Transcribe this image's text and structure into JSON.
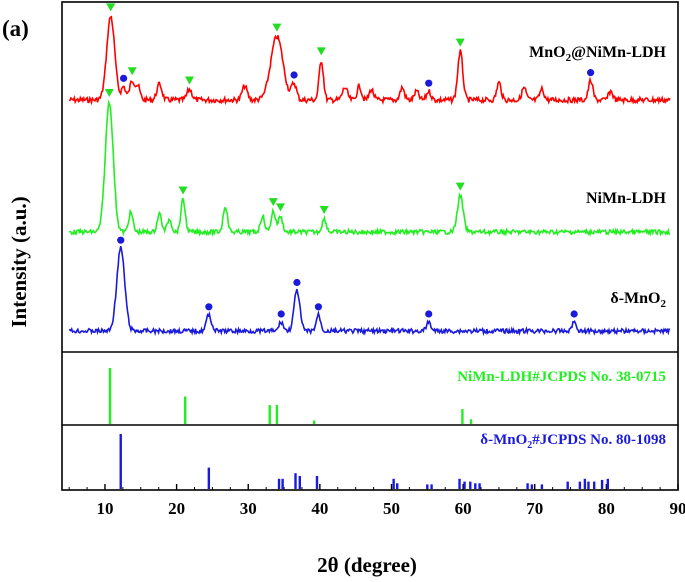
{
  "panel_label": "(a)",
  "chart_data": {
    "type": "line",
    "xlabel": "2θ (degree)",
    "ylabel": "Intensity (a.u.)",
    "xlim": [
      4,
      90
    ],
    "x_ticks": [
      10,
      20,
      30,
      40,
      50,
      60,
      70,
      80,
      90
    ],
    "y_ticks_shown": false,
    "series": [
      {
        "name": "MnO2@NiMn-LDH",
        "label_main": "MnO",
        "label_sub": "2",
        "label_rest": "@NiMn-LDH",
        "color": "#ff0000",
        "peaks": [
          {
            "x": 10.8,
            "h": 0.95,
            "w": 0.55
          },
          {
            "x": 12.6,
            "h": 0.15,
            "w": 0.3
          },
          {
            "x": 13.8,
            "h": 0.22,
            "w": 0.35
          },
          {
            "x": 14.6,
            "h": 0.15,
            "w": 0.3
          },
          {
            "x": 17.6,
            "h": 0.18,
            "w": 0.35
          },
          {
            "x": 21.8,
            "h": 0.12,
            "w": 0.35
          },
          {
            "x": 29.5,
            "h": 0.16,
            "w": 0.35
          },
          {
            "x": 34.0,
            "h": 0.72,
            "w": 0.85
          },
          {
            "x": 36.4,
            "h": 0.18,
            "w": 0.35
          },
          {
            "x": 40.2,
            "h": 0.45,
            "w": 0.3
          },
          {
            "x": 43.5,
            "h": 0.14,
            "w": 0.35
          },
          {
            "x": 45.5,
            "h": 0.16,
            "w": 0.3
          },
          {
            "x": 47.2,
            "h": 0.12,
            "w": 0.3
          },
          {
            "x": 51.5,
            "h": 0.14,
            "w": 0.3
          },
          {
            "x": 53.5,
            "h": 0.1,
            "w": 0.3
          },
          {
            "x": 55.2,
            "h": 0.1,
            "w": 0.3
          },
          {
            "x": 59.6,
            "h": 0.55,
            "w": 0.35
          },
          {
            "x": 65.0,
            "h": 0.2,
            "w": 0.3
          },
          {
            "x": 68.5,
            "h": 0.14,
            "w": 0.3
          },
          {
            "x": 71.0,
            "h": 0.12,
            "w": 0.3
          },
          {
            "x": 77.8,
            "h": 0.22,
            "w": 0.3
          },
          {
            "x": 80.6,
            "h": 0.1,
            "w": 0.3
          }
        ],
        "markers_ldh": [
          10.8,
          13.8,
          21.8,
          34.0,
          40.2,
          59.6
        ],
        "markers_mno2": [
          12.6,
          36.4,
          55.2,
          77.8
        ]
      },
      {
        "name": "NiMn-LDH",
        "label_main": "NiMn-LDH",
        "label_sub": "",
        "label_rest": "",
        "color": "#22ee22",
        "peaks": [
          {
            "x": 10.6,
            "h": 1.0,
            "w": 0.55
          },
          {
            "x": 13.6,
            "h": 0.15,
            "w": 0.3
          },
          {
            "x": 17.6,
            "h": 0.14,
            "w": 0.3
          },
          {
            "x": 19.0,
            "h": 0.1,
            "w": 0.3
          },
          {
            "x": 20.9,
            "h": 0.25,
            "w": 0.3
          },
          {
            "x": 26.8,
            "h": 0.2,
            "w": 0.3
          },
          {
            "x": 32.0,
            "h": 0.12,
            "w": 0.3
          },
          {
            "x": 33.5,
            "h": 0.16,
            "w": 0.3
          },
          {
            "x": 34.5,
            "h": 0.12,
            "w": 0.3
          },
          {
            "x": 40.6,
            "h": 0.1,
            "w": 0.3
          },
          {
            "x": 59.6,
            "h": 0.28,
            "w": 0.4
          }
        ],
        "markers_ldh": [
          10.6,
          20.9,
          33.5,
          34.5,
          40.6,
          59.6
        ],
        "markers_mno2": []
      },
      {
        "name": "δ-MnO2",
        "label_main": "δ-MnO",
        "label_sub": "2",
        "label_rest": "",
        "color": "#1a1adb",
        "peaks": [
          {
            "x": 12.2,
            "h": 0.92,
            "w": 0.55
          },
          {
            "x": 24.5,
            "h": 0.18,
            "w": 0.35
          },
          {
            "x": 34.6,
            "h": 0.1,
            "w": 0.3
          },
          {
            "x": 36.8,
            "h": 0.45,
            "w": 0.4
          },
          {
            "x": 39.8,
            "h": 0.18,
            "w": 0.3
          },
          {
            "x": 55.2,
            "h": 0.1,
            "w": 0.3
          },
          {
            "x": 75.5,
            "h": 0.1,
            "w": 0.3
          }
        ],
        "markers_ldh": [],
        "markers_mno2": [
          12.2,
          24.5,
          34.6,
          36.8,
          39.8,
          55.2,
          75.5
        ]
      }
    ],
    "references": [
      {
        "name": "NiMn-LDH#JCPDS No. 38-0715",
        "label_main": "NiMn-LDH#JCPDS No. 38-0715",
        "label_sub": "",
        "label_rest": "",
        "color": "#22ee22",
        "lines": [
          [
            10.7,
            1.0
          ],
          [
            21.2,
            0.5
          ],
          [
            33.0,
            0.35
          ],
          [
            34.0,
            0.35
          ],
          [
            39.2,
            0.08
          ],
          [
            59.9,
            0.28
          ],
          [
            61.1,
            0.1
          ]
        ]
      },
      {
        "name": "δ-MnO2#JCPDS No. 80-1098",
        "label_main": "δ-MnO",
        "label_sub": "2",
        "label_rest": "#JCPDS No. 80-1098",
        "color": "#1a1adb",
        "lines": [
          [
            12.2,
            1.0
          ],
          [
            24.5,
            0.4
          ],
          [
            34.3,
            0.2
          ],
          [
            34.8,
            0.2
          ],
          [
            36.6,
            0.3
          ],
          [
            37.2,
            0.25
          ],
          [
            39.6,
            0.25
          ],
          [
            50.3,
            0.2
          ],
          [
            50.8,
            0.12
          ],
          [
            55.0,
            0.1
          ],
          [
            55.6,
            0.1
          ],
          [
            59.5,
            0.2
          ],
          [
            60.2,
            0.15
          ],
          [
            61.0,
            0.15
          ],
          [
            61.7,
            0.12
          ],
          [
            62.3,
            0.12
          ],
          [
            69.0,
            0.12
          ],
          [
            69.6,
            0.1
          ],
          [
            71.0,
            0.1
          ],
          [
            74.6,
            0.15
          ],
          [
            76.3,
            0.15
          ],
          [
            77.0,
            0.2
          ],
          [
            77.5,
            0.15
          ],
          [
            78.3,
            0.15
          ],
          [
            79.4,
            0.18
          ],
          [
            80.2,
            0.2
          ]
        ]
      }
    ]
  }
}
